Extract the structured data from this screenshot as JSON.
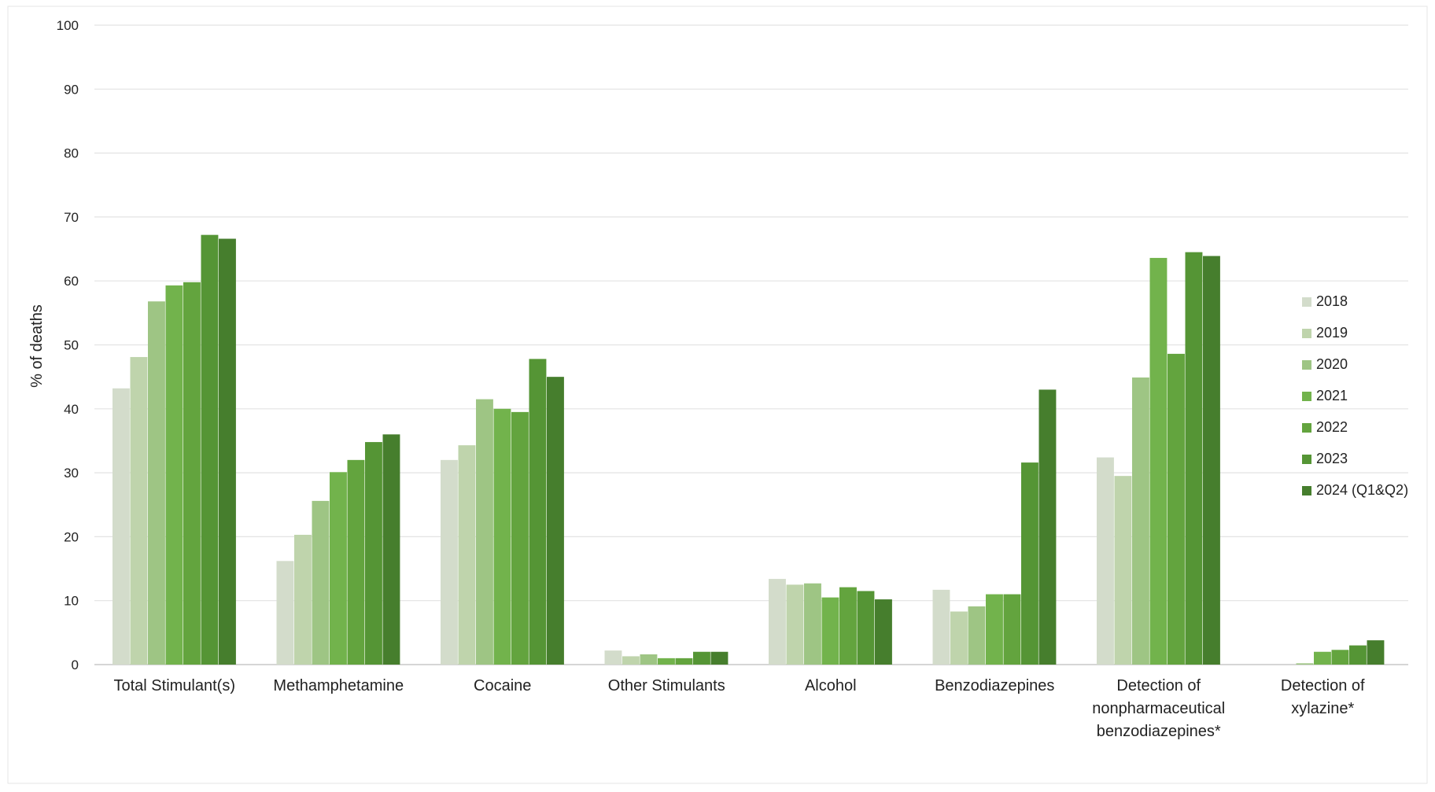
{
  "chart_data": {
    "type": "bar",
    "title": "",
    "xlabel": "",
    "ylabel": "% of deaths",
    "ylim": [
      0,
      100
    ],
    "yticks": [
      0,
      10,
      20,
      30,
      40,
      50,
      60,
      70,
      80,
      90,
      100
    ],
    "grid": true,
    "legend_position": "right",
    "categories": [
      [
        "Total Stimulant(s)"
      ],
      [
        "Methamphetamine"
      ],
      [
        "Cocaine"
      ],
      [
        "Other Stimulants"
      ],
      [
        "Alcohol"
      ],
      [
        "Benzodiazepines"
      ],
      [
        "Detection of",
        "nonpharmaceutical",
        "benzodiazepines*"
      ],
      [
        "Detection of",
        "xylazine*"
      ]
    ],
    "series": [
      {
        "name": "2018",
        "color": "#d3dccb",
        "values": [
          43.2,
          16.2,
          32.0,
          2.2,
          13.4,
          11.7,
          32.4,
          0
        ]
      },
      {
        "name": "2019",
        "color": "#bfd4ac",
        "values": [
          48.1,
          20.3,
          34.3,
          1.3,
          12.5,
          8.3,
          29.5,
          0
        ]
      },
      {
        "name": "2020",
        "color": "#9ec584",
        "values": [
          56.8,
          25.6,
          41.5,
          1.6,
          12.7,
          9.1,
          44.9,
          0.2
        ]
      },
      {
        "name": "2021",
        "color": "#72b34c",
        "values": [
          59.3,
          30.1,
          40.0,
          1.0,
          10.5,
          11.0,
          63.6,
          2.0
        ]
      },
      {
        "name": "2022",
        "color": "#63a43e",
        "values": [
          59.8,
          32.0,
          39.5,
          1.0,
          12.1,
          11.0,
          48.6,
          2.3
        ]
      },
      {
        "name": "2023",
        "color": "#559535",
        "values": [
          67.2,
          34.8,
          47.8,
          2.0,
          11.5,
          31.6,
          64.5,
          3.0
        ]
      },
      {
        "name": "2024 (Q1&Q2)",
        "color": "#467e2d",
        "values": [
          66.6,
          36.0,
          45.0,
          2.0,
          10.2,
          43.0,
          63.9,
          3.8
        ]
      }
    ]
  }
}
